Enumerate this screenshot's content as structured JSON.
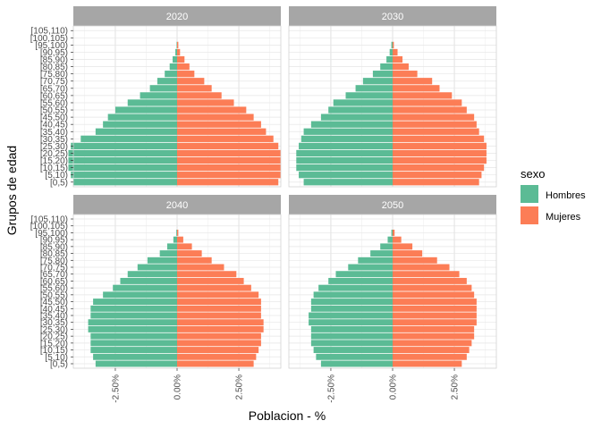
{
  "chart_data": {
    "type": "bar",
    "subtype": "population-pyramid-facets",
    "xlabel": "Poblacion - %",
    "ylabel": "Grupos de edad",
    "xlim": [
      -4.2,
      4.2
    ],
    "x_ticks": [
      -2.5,
      0,
      2.5
    ],
    "x_tick_labels": [
      "-2.50%",
      "0.00%",
      "2.50%"
    ],
    "categories": [
      "[0,5)",
      "[5,10)",
      "[10,15)",
      "[15,20)",
      "[20,25)",
      "[25,30)",
      "[30,35)",
      "[35,40)",
      "[40,45)",
      "[45,50)",
      "[50,55)",
      "[55,60)",
      "[60,65)",
      "[65,70)",
      "[70,75)",
      "[75,80)",
      "[80,85)",
      "[85,90)",
      "[90,95)",
      "[95,100)",
      "[100,105)",
      "[105,110)"
    ],
    "grid": true,
    "legend": {
      "title": "sexo",
      "position": "right",
      "entries": [
        {
          "name": "Hombres",
          "color": "#5bbb95"
        },
        {
          "name": "Mujeres",
          "color": "#fc7d56"
        }
      ]
    },
    "panels": [
      {
        "title": "2020",
        "series": [
          {
            "name": "Hombres",
            "values": [
              -4.2,
              -4.3,
              -4.4,
              -4.4,
              -4.4,
              -4.3,
              -3.9,
              -3.3,
              -3.0,
              -2.8,
              -2.5,
              -2.0,
              -1.5,
              -1.1,
              -0.8,
              -0.5,
              -0.3,
              -0.18,
              -0.07,
              -0.02,
              0,
              0
            ]
          },
          {
            "name": "Mujeres",
            "values": [
              4.1,
              4.2,
              4.2,
              4.2,
              4.2,
              4.1,
              3.9,
              3.6,
              3.4,
              3.1,
              2.8,
              2.3,
              1.8,
              1.4,
              1.1,
              0.7,
              0.5,
              0.3,
              0.12,
              0.05,
              0,
              0
            ]
          }
        ]
      },
      {
        "title": "2030",
        "series": [
          {
            "name": "Hombres",
            "values": [
              -3.6,
              -3.8,
              -3.9,
              -3.9,
              -3.9,
              -3.8,
              -3.7,
              -3.6,
              -3.3,
              -2.9,
              -2.6,
              -2.4,
              -1.9,
              -1.5,
              -1.2,
              -0.8,
              -0.5,
              -0.25,
              -0.12,
              -0.05,
              0,
              0
            ]
          },
          {
            "name": "Mujeres",
            "values": [
              3.5,
              3.6,
              3.7,
              3.8,
              3.8,
              3.8,
              3.7,
              3.5,
              3.4,
              3.3,
              3.0,
              2.8,
              2.4,
              1.9,
              1.6,
              1.0,
              0.65,
              0.4,
              0.2,
              0.05,
              0,
              0
            ]
          }
        ]
      },
      {
        "title": "2040",
        "series": [
          {
            "name": "Hombres",
            "values": [
              -3.3,
              -3.4,
              -3.5,
              -3.5,
              -3.5,
              -3.6,
              -3.6,
              -3.5,
              -3.5,
              -3.4,
              -3.0,
              -2.6,
              -2.3,
              -2.0,
              -1.6,
              -1.2,
              -0.7,
              -0.4,
              -0.15,
              -0.03,
              0,
              0
            ]
          },
          {
            "name": "Mujeres",
            "values": [
              3.1,
              3.2,
              3.3,
              3.4,
              3.4,
              3.5,
              3.5,
              3.4,
              3.4,
              3.4,
              3.3,
              3.0,
              2.7,
              2.4,
              1.9,
              1.4,
              1.0,
              0.6,
              0.25,
              0.05,
              0,
              0
            ]
          }
        ]
      },
      {
        "title": "2050",
        "series": [
          {
            "name": "Hombres",
            "values": [
              -2.9,
              -3.1,
              -3.2,
              -3.3,
              -3.3,
              -3.3,
              -3.4,
              -3.4,
              -3.3,
              -3.3,
              -3.2,
              -3.0,
              -2.6,
              -2.3,
              -1.8,
              -1.4,
              -0.9,
              -0.5,
              -0.2,
              -0.05,
              0,
              0
            ]
          },
          {
            "name": "Mujeres",
            "values": [
              2.8,
              3.0,
              3.1,
              3.2,
              3.3,
              3.3,
              3.4,
              3.4,
              3.4,
              3.4,
              3.3,
              3.2,
              3.0,
              2.7,
              2.3,
              1.8,
              1.2,
              0.8,
              0.35,
              0.08,
              0,
              0
            ]
          }
        ]
      }
    ]
  }
}
